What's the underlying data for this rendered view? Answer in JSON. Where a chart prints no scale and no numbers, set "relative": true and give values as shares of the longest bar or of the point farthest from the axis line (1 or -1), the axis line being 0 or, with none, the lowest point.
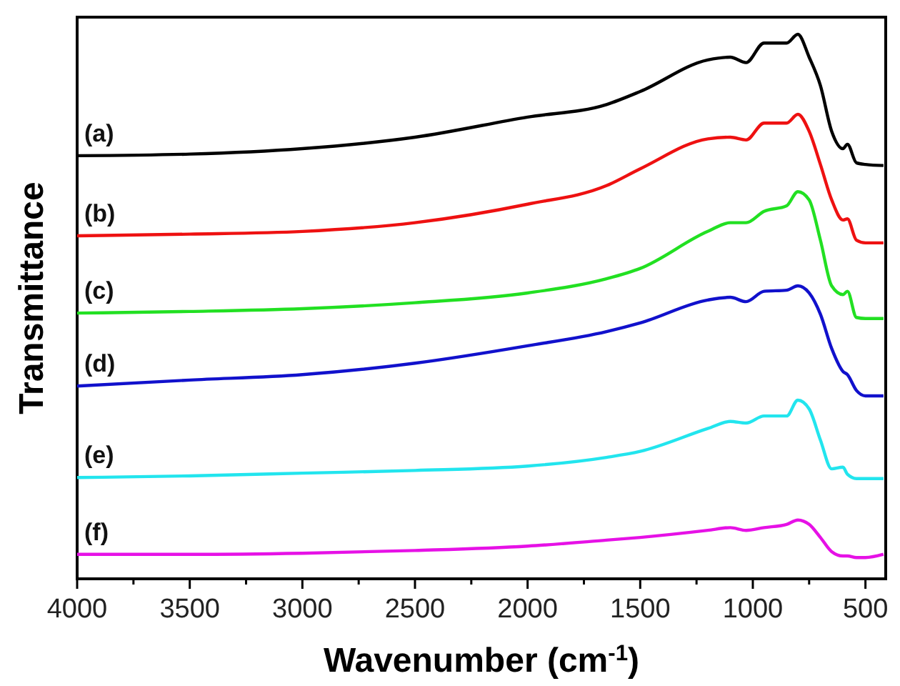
{
  "chart_data": {
    "type": "line",
    "relative": true,
    "xlabel": "Wavenumber (cm$^{-1}$)",
    "ylabel": "Transmittance",
    "x": [
      4000,
      3500,
      3000,
      2500,
      2000,
      1650,
      1500,
      1200,
      1100,
      1030,
      950,
      850,
      800,
      750,
      700,
      650,
      600,
      580,
      540,
      500,
      420
    ],
    "xlim": [
      4000,
      410
    ],
    "xticks": [
      4000,
      {
        "value": 3750,
        "label": null
      },
      3500,
      {
        "value": 3250,
        "label": null
      },
      3000,
      {
        "value": 2750,
        "label": null
      },
      2500,
      {
        "value": 2250,
        "label": null
      },
      2000,
      {
        "value": 1750,
        "label": null
      },
      1500,
      {
        "value": 1250,
        "label": null
      },
      1000,
      {
        "value": 750,
        "label": null
      },
      500
    ],
    "tick_labels": "x",
    "grid": false,
    "marker": "none",
    "line_style": "solid",
    "series": [
      {
        "name": "(a)",
        "color": "#000000",
        "values": [
          0.777,
          0.78,
          0.79,
          0.811,
          0.848,
          0.871,
          0.895,
          0.953,
          0.958,
          0.948,
          0.984,
          0.984,
          1,
          0.958,
          0.906,
          0.822,
          0.79,
          0.798,
          0.764,
          0.761,
          0.759
        ]
      },
      {
        "name": "(b)",
        "color": "#ee1111",
        "values": [
          0.63,
          0.633,
          0.638,
          0.654,
          0.688,
          0.722,
          0.753,
          0.808,
          0.811,
          0.806,
          0.837,
          0.837,
          0.853,
          0.822,
          0.761,
          0.696,
          0.659,
          0.661,
          0.622,
          0.617,
          0.617
        ]
      },
      {
        "name": "(c)",
        "color": "#22e022",
        "values": [
          0.488,
          0.491,
          0.496,
          0.507,
          0.525,
          0.551,
          0.57,
          0.638,
          0.654,
          0.654,
          0.675,
          0.685,
          0.711,
          0.696,
          0.622,
          0.538,
          0.522,
          0.528,
          0.48,
          0.478,
          0.478
        ]
      },
      {
        "name": "(d)",
        "color": "#1111cc",
        "values": [
          0.354,
          0.365,
          0.375,
          0.396,
          0.428,
          0.454,
          0.47,
          0.512,
          0.517,
          0.509,
          0.528,
          0.53,
          0.538,
          0.525,
          0.486,
          0.423,
          0.381,
          0.375,
          0.346,
          0.336,
          0.336
        ]
      },
      {
        "name": "(e)",
        "color": "#22e5ee",
        "values": [
          0.186,
          0.189,
          0.194,
          0.199,
          0.207,
          0.223,
          0.234,
          0.276,
          0.289,
          0.286,
          0.299,
          0.299,
          0.328,
          0.312,
          0.255,
          0.202,
          0.205,
          0.192,
          0.184,
          0.184,
          0.184
        ]
      },
      {
        "name": "(f)",
        "color": "#e611e6",
        "values": [
          0.045,
          0.045,
          0.047,
          0.052,
          0.06,
          0.071,
          0.076,
          0.089,
          0.094,
          0.089,
          0.094,
          0.1,
          0.108,
          0.1,
          0.076,
          0.05,
          0.042,
          0.042,
          0.039,
          0.039,
          0.045
        ]
      }
    ]
  }
}
